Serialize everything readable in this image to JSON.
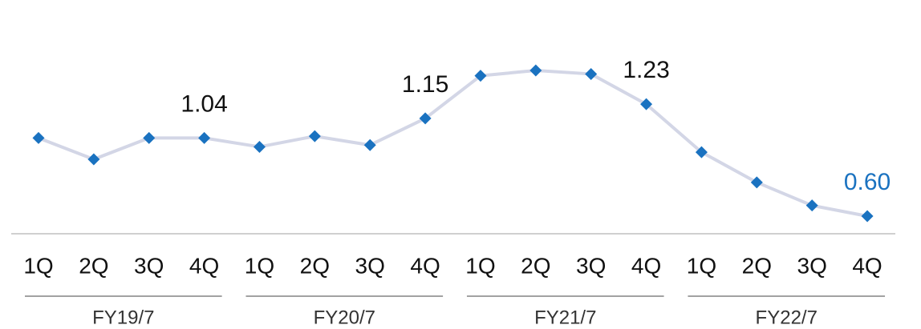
{
  "chart_data": {
    "type": "line",
    "categories": [
      "1Q",
      "2Q",
      "3Q",
      "4Q",
      "1Q",
      "2Q",
      "3Q",
      "4Q",
      "1Q",
      "2Q",
      "3Q",
      "4Q",
      "1Q",
      "2Q",
      "3Q",
      "4Q"
    ],
    "groups": [
      "FY19/7",
      "FY20/7",
      "FY21/7",
      "FY22/7"
    ],
    "values": [
      1.04,
      0.92,
      1.04,
      1.04,
      0.99,
      1.05,
      1.0,
      1.15,
      1.39,
      1.42,
      1.4,
      1.23,
      0.96,
      0.79,
      0.66,
      0.6
    ],
    "value_labels": [
      null,
      null,
      null,
      "1.04",
      null,
      null,
      null,
      "1.15",
      null,
      null,
      null,
      "1.23",
      null,
      null,
      null,
      "0.60"
    ],
    "color": "#1a72c0",
    "line_color": "#d3d6e6",
    "highlight_color": "#1a72c0"
  }
}
